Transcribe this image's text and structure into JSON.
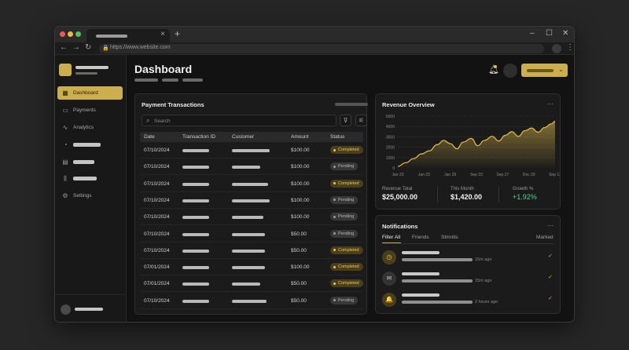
{
  "browser": {
    "url": "https://www.website.com",
    "new_tab_glyph": "+",
    "close_glyph": "×",
    "window_controls": [
      "–",
      "☐",
      "✕"
    ],
    "nav": [
      "←",
      "→",
      "↻"
    ]
  },
  "sidebar": {
    "items": [
      {
        "label": "Dashboard",
        "icon": "grid-icon",
        "glyph": "▦",
        "active": true
      },
      {
        "label": "Payments",
        "icon": "card-icon",
        "glyph": "▭"
      },
      {
        "label": "Analytics",
        "icon": "chart-line-icon",
        "glyph": "∿"
      },
      {
        "label": "",
        "icon": "pie-chart-icon",
        "glyph": "◔"
      },
      {
        "label": "",
        "icon": "folder-icon",
        "glyph": "▤"
      },
      {
        "label": "",
        "icon": "bar-chart-icon",
        "glyph": "⫼"
      },
      {
        "label": "Settings",
        "icon": "gear-icon",
        "glyph": "⚙"
      }
    ]
  },
  "header": {
    "title": "Dashboard"
  },
  "transactions": {
    "title": "Payment Transactions",
    "search_placeholder": "Search",
    "filter_glyph": "⊽",
    "settings_glyph": "⚟",
    "columns": [
      "Date",
      "Transaction ID",
      "Customer",
      "Amount",
      "Status"
    ],
    "rows": [
      {
        "date": "07/10/2024",
        "amount": "$100.00",
        "status": "Completed"
      },
      {
        "date": "07/10/2024",
        "amount": "$100.00",
        "status": "Pending"
      },
      {
        "date": "07/10/2024",
        "amount": "$100.00",
        "status": "Completed"
      },
      {
        "date": "07/10/2024",
        "amount": "$100.00",
        "status": "Pending"
      },
      {
        "date": "07/10/2024",
        "amount": "$100.00",
        "status": "Pending"
      },
      {
        "date": "07/10/2024",
        "amount": "$50.00",
        "status": "Pending"
      },
      {
        "date": "07/10/2024",
        "amount": "$50.00",
        "status": "Completed"
      },
      {
        "date": "07/01/2024",
        "amount": "$100.00",
        "status": "Completed"
      },
      {
        "date": "07/01/2024",
        "amount": "$50.00",
        "status": "Completed"
      },
      {
        "date": "07/10/2024",
        "amount": "$50.00",
        "status": "Pending"
      }
    ]
  },
  "revenue": {
    "title": "Revenue Overview",
    "more": "···",
    "stats": [
      {
        "label": "Revenue Total",
        "value": "$25,000.00"
      },
      {
        "label": "This Month",
        "value": "$1,420.00"
      },
      {
        "label": "Growth %",
        "value": "+1.92%"
      }
    ]
  },
  "chart_data": {
    "type": "area",
    "title": "",
    "xlabel": "",
    "ylabel": "",
    "x": [
      "Jan 20",
      "Jan 23",
      "Jan 29",
      "Sep 23",
      "Sep 27",
      "Dec 29",
      "Sep 13"
    ],
    "y_ticks": [
      0,
      1000,
      2000,
      3000,
      4000,
      5000
    ],
    "ylim": [
      0,
      5000
    ],
    "grid": true,
    "series": [
      {
        "color": "#d8b548",
        "points": [
          [
            0,
            150
          ],
          [
            0.3,
            500
          ],
          [
            0.6,
            900
          ],
          [
            0.9,
            1350
          ],
          [
            1.2,
            1650
          ],
          [
            1.5,
            2250
          ],
          [
            1.75,
            2650
          ],
          [
            2.0,
            2350
          ],
          [
            2.25,
            1850
          ],
          [
            2.5,
            2500
          ],
          [
            2.8,
            2850
          ],
          [
            3.05,
            2150
          ],
          [
            3.3,
            2650
          ],
          [
            3.6,
            3050
          ],
          [
            3.85,
            2600
          ],
          [
            4.1,
            3150
          ],
          [
            4.35,
            3500
          ],
          [
            4.6,
            3050
          ],
          [
            4.85,
            3600
          ],
          [
            5.1,
            3850
          ],
          [
            5.35,
            3450
          ],
          [
            5.6,
            3900
          ],
          [
            5.85,
            4250
          ],
          [
            6.0,
            4500
          ]
        ]
      }
    ]
  },
  "notifications": {
    "title": "Notifications",
    "more": "···",
    "filters": [
      "Filter All",
      "Friends",
      "Stmnits"
    ],
    "marked": "Marked",
    "items": [
      {
        "icon": "clock-icon",
        "glyph": "◷",
        "tone": "gold",
        "time": "15m ago"
      },
      {
        "icon": "mail-icon",
        "glyph": "✉",
        "tone": "grey",
        "time": "15m ago"
      },
      {
        "icon": "bell-icon",
        "glyph": "🔔",
        "tone": "gold",
        "time": "2 hours ago"
      }
    ],
    "check_glyph": "✓"
  }
}
